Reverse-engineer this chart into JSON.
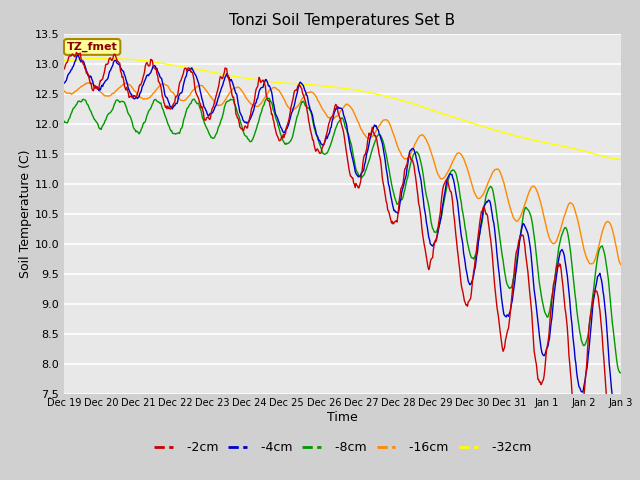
{
  "title": "Tonzi Soil Temperatures Set B",
  "xlabel": "Time",
  "ylabel": "Soil Temperature (C)",
  "ylim": [
    7.5,
    13.5
  ],
  "yticks": [
    7.5,
    8.0,
    8.5,
    9.0,
    9.5,
    10.0,
    10.5,
    11.0,
    11.5,
    12.0,
    12.5,
    13.0,
    13.5
  ],
  "fig_bg_color": "#d0d0d0",
  "plot_bg_color": "#e8e8e8",
  "series_colors": {
    "-2cm": "#cc0000",
    "-4cm": "#0000cc",
    "-8cm": "#009900",
    "-16cm": "#ff8800",
    "-32cm": "#ffff00"
  },
  "legend_label": "TZ_fmet",
  "legend_box_color": "#ffff99",
  "legend_box_border": "#aa8800",
  "xtick_labels": [
    "Dec 19",
    "Dec 20",
    "Dec 21",
    "Dec 22",
    "Dec 23",
    "Dec 24",
    "Dec 25",
    "Dec 26",
    "Dec 27",
    "Dec 28",
    "Dec 29",
    "Dec 30",
    "Dec 31",
    "Jan 1",
    "Jan 2",
    "Jan 3"
  ],
  "xtick_positions": [
    0,
    1,
    2,
    3,
    4,
    5,
    6,
    7,
    8,
    9,
    10,
    11,
    12,
    13,
    14,
    15
  ]
}
